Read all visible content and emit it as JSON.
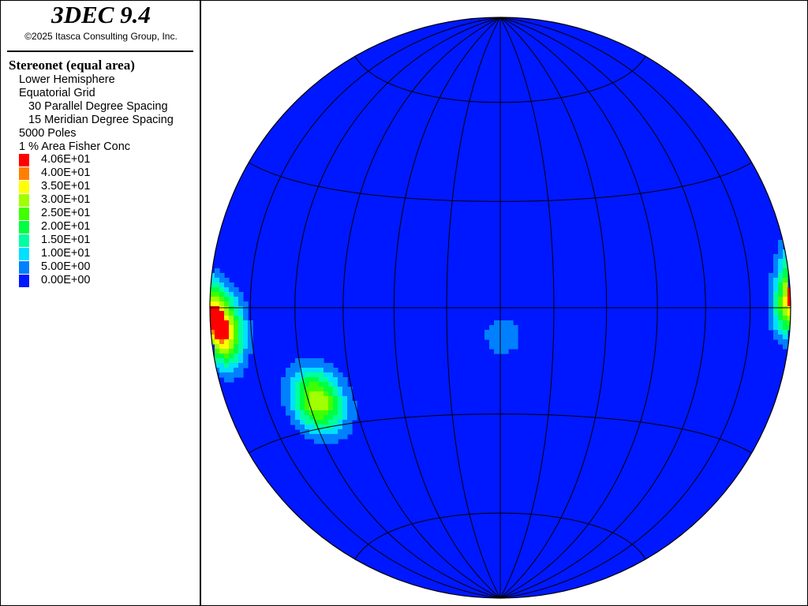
{
  "header": {
    "app_title": "3DEC 9.4",
    "copyright": "©2025 Itasca Consulting Group, Inc."
  },
  "legend": {
    "plot_title": "Stereonet (equal area)",
    "hemisphere": "Lower Hemisphere",
    "grid": "Equatorial Grid",
    "parallel_spacing": "30 Parallel Degree Spacing",
    "meridian_spacing": "15 Meridian Degree Spacing",
    "poles": "5000 Poles",
    "concentration": "1 % Area Fisher Conc"
  },
  "chart_data": {
    "type": "heatmap",
    "projection": "equal area, lower hemisphere",
    "grid": {
      "type": "equatorial",
      "parallel_spacing_deg": 30,
      "meridian_spacing_deg": 15
    },
    "poles": 5000,
    "colorbar": [
      {
        "label": "4.06E+01",
        "value": 40.6,
        "color": "#ff0000"
      },
      {
        "label": "4.00E+01",
        "value": 40.0,
        "color": "#ff8000"
      },
      {
        "label": "3.50E+01",
        "value": 35.0,
        "color": "#ffff00"
      },
      {
        "label": "3.00E+01",
        "value": 30.0,
        "color": "#a0ff00"
      },
      {
        "label": "2.50E+01",
        "value": 25.0,
        "color": "#40ff00"
      },
      {
        "label": "2.00E+01",
        "value": 20.0,
        "color": "#00ff40"
      },
      {
        "label": "1.50E+01",
        "value": 15.0,
        "color": "#00ffa0"
      },
      {
        "label": "1.00E+01",
        "value": 10.0,
        "color": "#00e0ff"
      },
      {
        "label": "5.00E+00",
        "value": 5.0,
        "color": "#0080ff"
      },
      {
        "label": "0.00E+00",
        "value": 0.0,
        "color": "#0018ff"
      }
    ],
    "background_color": "#0018ff",
    "clusters": [
      {
        "name": "west",
        "trend_deg": 265,
        "plunge_deg": 5,
        "peak": 40.6,
        "spread_deg": 7
      },
      {
        "name": "southwest",
        "trend_deg": 243,
        "plunge_deg": 30,
        "peak": 34,
        "spread_deg": 8
      },
      {
        "name": "center",
        "trend_deg": 175,
        "plunge_deg": 82,
        "peak": 9,
        "spread_deg": 6
      },
      {
        "name": "east",
        "trend_deg": 90,
        "plunge_deg": 1,
        "peak": 27,
        "spread_deg": 6
      }
    ]
  }
}
